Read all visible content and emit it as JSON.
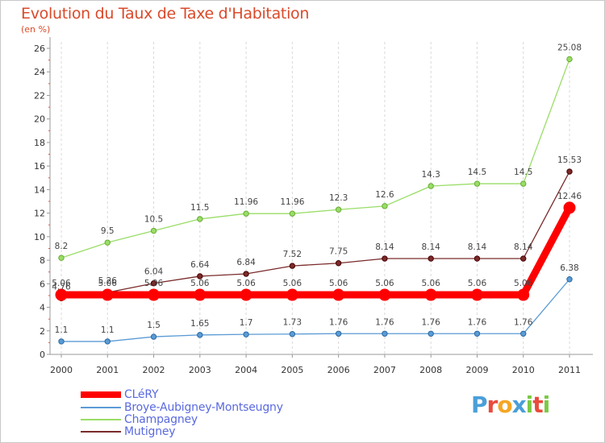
{
  "chart_data": {
    "type": "line",
    "title": "Evolution du Taux de Taxe d'Habitation",
    "unit": "(en %)",
    "categories": [
      "2000",
      "2001",
      "2002",
      "2003",
      "2004",
      "2005",
      "2006",
      "2007",
      "2008",
      "2009",
      "2010",
      "2011"
    ],
    "ylim": [
      0,
      26
    ],
    "yticks": [
      0,
      2,
      4,
      6,
      8,
      10,
      12,
      14,
      16,
      18,
      20,
      22,
      24,
      26
    ],
    "grid": "dashed-vertical",
    "legend_position": "bottom-left",
    "series": [
      {
        "name": "CLéRY",
        "color": "#ff0000",
        "values": [
          5.06,
          5.06,
          5.06,
          5.06,
          5.06,
          5.06,
          5.06,
          5.06,
          5.06,
          5.06,
          5.06,
          12.46
        ],
        "labels": [
          "5.06",
          "5.06",
          "5.06",
          "5.06",
          "5.06",
          "5.06",
          "5.06",
          "5.06",
          "5.06",
          "5.06",
          "5.06",
          "12.46"
        ]
      },
      {
        "name": "Broye-Aubigney-Montseugny",
        "color": "#5b9bd5",
        "values": [
          1.1,
          1.1,
          1.5,
          1.65,
          1.7,
          1.73,
          1.76,
          1.76,
          1.76,
          1.76,
          1.76,
          6.38
        ],
        "labels": [
          "1.1",
          "1.1",
          "1.5",
          "1.65",
          "1.7",
          "1.73",
          "1.76",
          "1.76",
          "1.76",
          "1.76",
          "1.76",
          "6.38"
        ]
      },
      {
        "name": "Champagney",
        "color": "#99dd66",
        "values": [
          8.2,
          9.5,
          10.5,
          11.5,
          11.96,
          11.96,
          12.3,
          12.6,
          14.3,
          14.5,
          14.5,
          25.08
        ],
        "labels": [
          "8.2",
          "9.5",
          "10.5",
          "11.5",
          "11.96",
          "11.96",
          "12.3",
          "12.6",
          "14.3",
          "14.5",
          "14.5",
          "25.08"
        ]
      },
      {
        "name": "Mutigney",
        "color": "#7a2a2a",
        "values": [
          4.76,
          5.26,
          6.04,
          6.64,
          6.84,
          7.52,
          7.75,
          8.14,
          8.14,
          8.14,
          8.14,
          15.53
        ],
        "labels": [
          "4.76",
          "5.26",
          "6.04",
          "6.64",
          "6.84",
          "7.52",
          "7.75",
          "8.14",
          "8.14",
          "8.14",
          "8.14",
          "15.53"
        ]
      }
    ]
  },
  "brand": {
    "letters": [
      "P",
      "r",
      "o",
      "x",
      "i",
      "t",
      "i"
    ],
    "colors": [
      "#4a9fd8",
      "#e94b3c",
      "#f5a623",
      "#4a9fd8",
      "#7ac943",
      "#e94b3c",
      "#7ac943"
    ]
  }
}
